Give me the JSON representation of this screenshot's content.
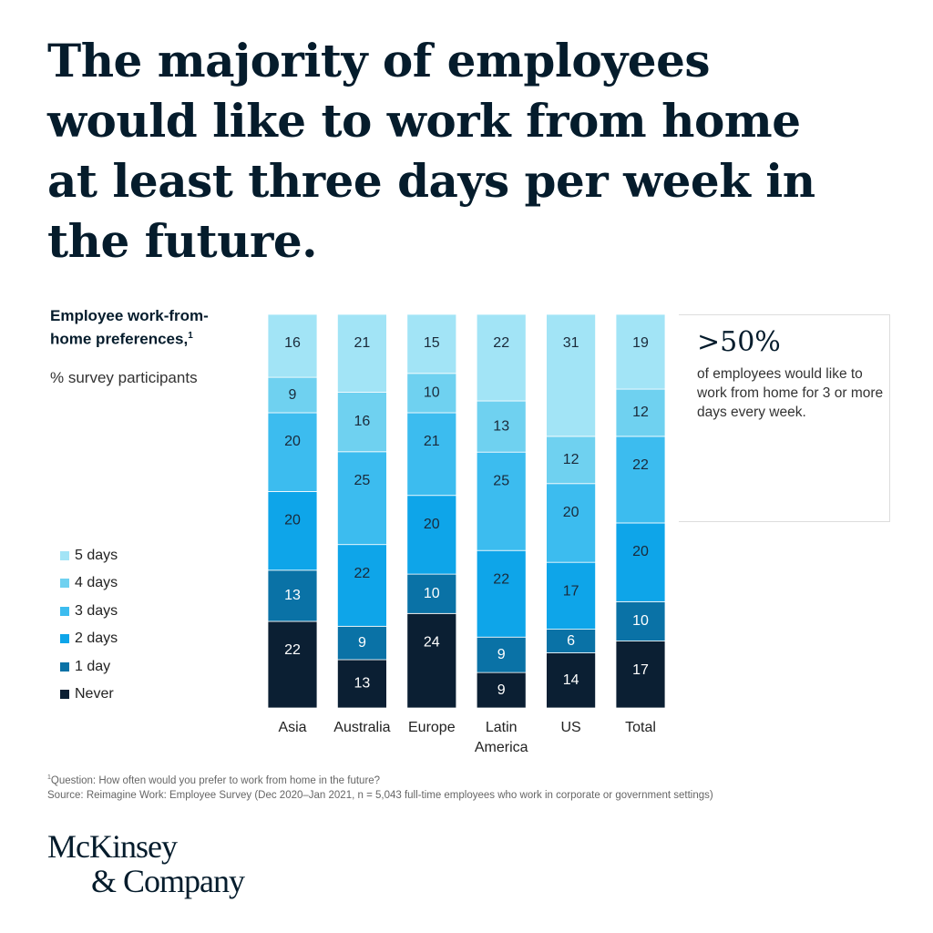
{
  "chart_data": {
    "type": "stacked_bar",
    "title": "The majority of employees would like to work from home at least three days per week in the future.",
    "legend_title": "Employee work-from-home preferences,",
    "legend_title_note": "1",
    "subtitle": "% survey participants",
    "categories": [
      "Asia",
      "Australia",
      "Europe",
      "Latin America",
      "US",
      "Total"
    ],
    "series": [
      {
        "name": "Never",
        "color": "#0b1f33",
        "values": [
          22,
          13,
          24,
          9,
          14,
          17
        ]
      },
      {
        "name": "1 day",
        "color": "#0a72a6",
        "values": [
          13,
          9,
          10,
          9,
          6,
          10
        ]
      },
      {
        "name": "2 days",
        "color": "#0ea5e9",
        "values": [
          20,
          22,
          20,
          22,
          17,
          20
        ]
      },
      {
        "name": "3 days",
        "color": "#3cbcef",
        "values": [
          20,
          25,
          21,
          25,
          20,
          22
        ]
      },
      {
        "name": "4 days",
        "color": "#6fd1f0",
        "values": [
          9,
          16,
          10,
          13,
          12,
          12
        ]
      },
      {
        "name": "5 days",
        "color": "#a2e4f6",
        "values": [
          16,
          21,
          15,
          22,
          31,
          19
        ]
      }
    ],
    "callout": {
      "headline": ">50%",
      "text": "of employees would like to work from home for 3 or more days every week."
    },
    "footnote": "Question: How often would you prefer to work from home in the future?",
    "footnote_mark": "1",
    "source": "Source: Reimagine Work: Employee Survey (Dec 2020–Jan 2021, n = 5,043 full-time employees who work in corporate or government settings)",
    "logo": [
      "McKinsey",
      "& Company"
    ]
  }
}
